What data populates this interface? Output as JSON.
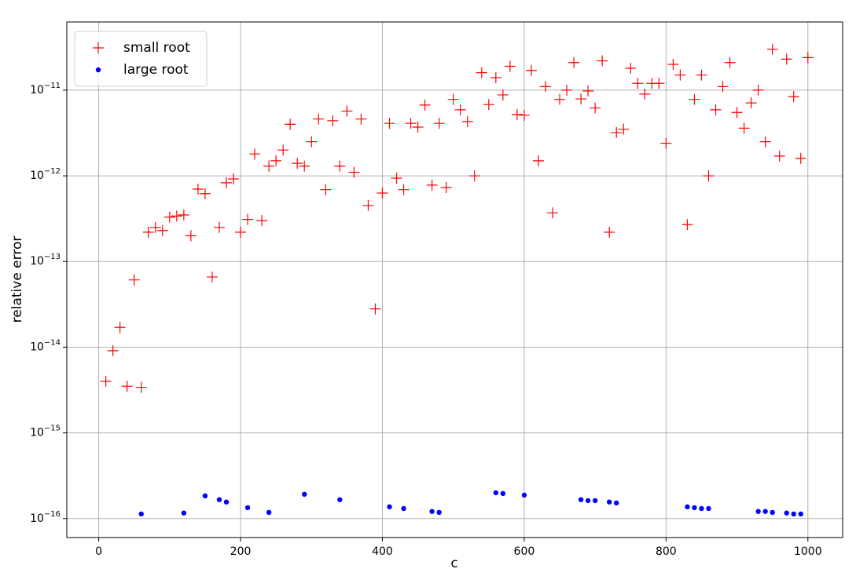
{
  "chart_data": {
    "type": "scatter",
    "xlabel": "c",
    "ylabel": "relative error",
    "xlim": [
      -45,
      1049
    ],
    "ylim": [
      6e-17,
      6.25e-11
    ],
    "yscale": "log",
    "grid": true,
    "legend": "upper left",
    "xticks": [
      0,
      200,
      400,
      600,
      800,
      1000
    ],
    "yticks": [
      {
        "value": 1e-16,
        "label": "10−16"
      },
      {
        "value": 1e-15,
        "label": "10−15"
      },
      {
        "value": 1e-14,
        "label": "10−14"
      },
      {
        "value": 1e-13,
        "label": "10−13"
      },
      {
        "value": 1e-12,
        "label": "10−12"
      },
      {
        "value": 1e-11,
        "label": "10−11"
      }
    ],
    "series": [
      {
        "name": "small root",
        "color": "#ff0000",
        "marker": "+",
        "x": [
          10,
          20,
          30,
          40,
          50,
          60,
          70,
          80,
          90,
          100,
          110,
          120,
          130,
          140,
          150,
          160,
          170,
          180,
          190,
          200,
          210,
          220,
          230,
          240,
          250,
          260,
          270,
          280,
          290,
          300,
          310,
          320,
          330,
          340,
          350,
          360,
          370,
          380,
          390,
          400,
          410,
          420,
          430,
          440,
          450,
          460,
          470,
          480,
          490,
          500,
          510,
          520,
          530,
          540,
          550,
          560,
          570,
          580,
          590,
          600,
          610,
          620,
          630,
          640,
          650,
          660,
          670,
          680,
          690,
          700,
          710,
          720,
          730,
          740,
          750,
          760,
          770,
          780,
          790,
          800,
          810,
          820,
          830,
          840,
          850,
          860,
          870,
          880,
          890,
          900,
          910,
          920,
          930,
          940,
          950,
          960,
          970,
          980,
          990,
          1000
        ],
        "values": [
          4e-15,
          9.1e-15,
          1.7e-14,
          3.5e-15,
          6.1e-14,
          3.4e-15,
          2.2e-13,
          2.5e-13,
          2.3e-13,
          3.3e-13,
          3.4e-13,
          3.5e-13,
          2e-13,
          7e-13,
          6.2e-13,
          6.6e-14,
          2.5e-13,
          8.3e-13,
          9.2e-13,
          2.2e-13,
          3.1e-13,
          1.8e-12,
          3e-13,
          1.3e-12,
          1.5e-12,
          2e-12,
          4e-12,
          1.4e-12,
          1.3e-12,
          2.5e-12,
          4.6e-12,
          6.9e-13,
          4.4e-12,
          1.3e-12,
          5.7e-12,
          1.1e-12,
          4.6e-12,
          4.5e-13,
          2.8e-14,
          6.3e-13,
          4.1e-12,
          9.4e-13,
          6.9e-13,
          4.1e-12,
          3.7e-12,
          6.7e-12,
          7.8e-13,
          4.1e-12,
          7.3e-13,
          7.8e-12,
          5.9e-12,
          4.3e-12,
          1e-12,
          1.6e-11,
          6.8e-12,
          1.4e-11,
          8.8e-12,
          1.9e-11,
          5.2e-12,
          5.1e-12,
          1.7e-11,
          1.5e-12,
          1.1e-11,
          3.7e-13,
          7.8e-12,
          1e-11,
          2.1e-11,
          7.9e-12,
          9.8e-12,
          6.2e-12,
          2.2e-11,
          2.2e-13,
          3.2e-12,
          3.5e-12,
          1.8e-11,
          1.2e-11,
          9e-12,
          1.2e-11,
          1.2e-11,
          2.4e-12,
          2e-11,
          1.5e-11,
          2.7e-13,
          7.8e-12,
          1.5e-11,
          1e-12,
          5.9e-12,
          1.1e-11,
          2.1e-11,
          5.5e-12,
          3.6e-12,
          7.1e-12,
          1e-11,
          2.5e-12,
          3e-11,
          1.7e-12,
          2.3e-11,
          8.4e-12,
          1.6e-12,
          2.4e-11
        ]
      },
      {
        "name": "large root",
        "color": "#0000ff",
        "marker": "o",
        "x": [
          60,
          120,
          150,
          170,
          180,
          210,
          240,
          290,
          340,
          410,
          430,
          470,
          480,
          560,
          570,
          600,
          680,
          690,
          700,
          720,
          730,
          830,
          840,
          850,
          860,
          930,
          940,
          950,
          970,
          980,
          990
        ],
        "values": [
          1.13e-16,
          1.16e-16,
          1.84e-16,
          1.66e-16,
          1.56e-16,
          1.34e-16,
          1.18e-16,
          1.92e-16,
          1.66e-16,
          1.37e-16,
          1.31e-16,
          1.21e-16,
          1.18e-16,
          2e-16,
          1.96e-16,
          1.88e-16,
          1.66e-16,
          1.62e-16,
          1.62e-16,
          1.56e-16,
          1.52e-16,
          1.37e-16,
          1.34e-16,
          1.31e-16,
          1.31e-16,
          1.21e-16,
          1.21e-16,
          1.18e-16,
          1.16e-16,
          1.13e-16,
          1.13e-16
        ]
      }
    ]
  }
}
